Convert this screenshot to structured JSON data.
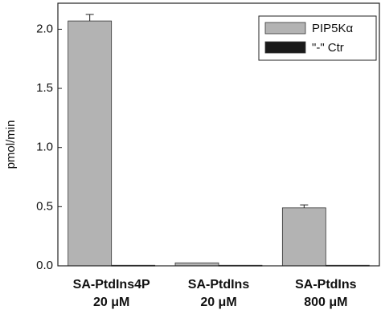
{
  "chart_data": {
    "type": "bar",
    "y_label": "pmol/min",
    "categories": [
      [
        "SA-PtdIns4P",
        "20 μM"
      ],
      [
        "SA-PtdIns",
        "20 μM"
      ],
      [
        "SA-PtdIns",
        "800 μM"
      ]
    ],
    "series": [
      {
        "name": "PIP5Kα",
        "color": "#b3b3b3",
        "values": [
          2.07,
          0.025,
          0.49
        ],
        "errors": [
          0.055,
          null,
          0.025
        ]
      },
      {
        "name": "\"-\" Ctr",
        "color": "#1a1a1a",
        "values": [
          0.005,
          0.005,
          0.005
        ]
      }
    ],
    "ylim": [
      0,
      2.22
    ],
    "yticks": [
      {
        "value": 0,
        "label": "0.0"
      },
      0.5,
      {
        "value": 1,
        "label": "1.0"
      },
      1.5,
      {
        "value": 2,
        "label": "2.0"
      }
    ],
    "legend": "top-right"
  }
}
